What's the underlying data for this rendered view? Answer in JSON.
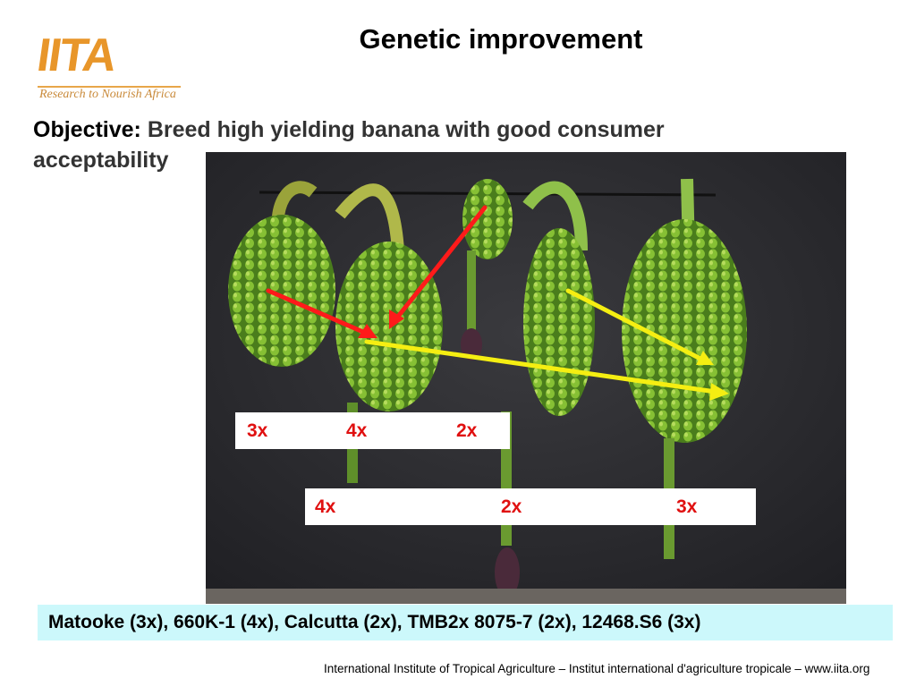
{
  "logo": {
    "mark": "IITA",
    "tagline": "Research to Nourish Africa",
    "color": "#e8962a"
  },
  "title": "Genetic improvement",
  "objective": {
    "label": "Objective:",
    "text": "Breed high yielding banana with good consumer acceptability"
  },
  "photo_labels": {
    "row1": [
      "3x",
      "4x",
      "2x"
    ],
    "row2": [
      "4x",
      "2x",
      "3x"
    ],
    "color": "#e01010"
  },
  "arrows": {
    "parent_arrow_color": "#ff1a1a",
    "offspring_arrow_color": "#f5ee12"
  },
  "banner": {
    "text": "Matooke (3x), 660K-1 (4x),  Calcutta (2x), TMB2x 8075-7 (2x), 12468.S6 (3x)",
    "background": "#ccf8fb"
  },
  "footer": "International Institute of Tropical Agriculture – Institut international d'agriculture tropicale – www.iita.org"
}
